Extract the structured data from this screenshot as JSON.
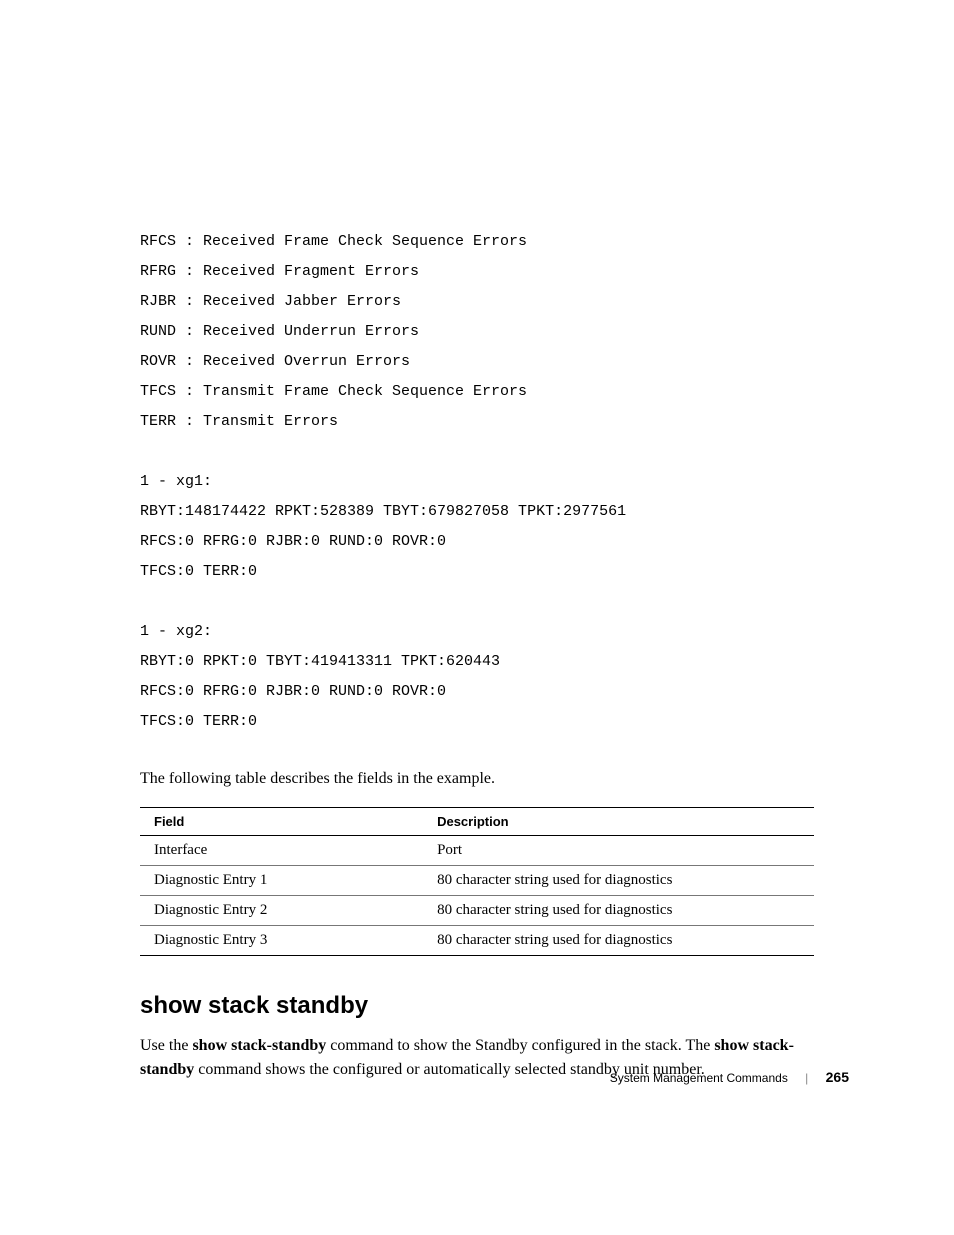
{
  "legend": {
    "lines": [
      "RFCS : Received Frame Check Sequence Errors",
      "RFRG : Received Fragment Errors",
      "RJBR : Received Jabber Errors",
      "RUND : Received Underrun Errors",
      "ROVR : Received Overrun Errors",
      "TFCS : Transmit Frame Check Sequence Errors",
      "TERR : Transmit Errors"
    ]
  },
  "port1": {
    "header": "1 - xg1:",
    "line1": "RBYT:148174422 RPKT:528389 TBYT:679827058 TPKT:2977561",
    "line2": "RFCS:0 RFRG:0 RJBR:0 RUND:0 ROVR:0",
    "line3": "TFCS:0 TERR:0"
  },
  "port2": {
    "header": "1 - xg2:",
    "line1": "RBYT:0 RPKT:0 TBYT:419413311 TPKT:620443",
    "line2": "RFCS:0 RFRG:0 RJBR:0 RUND:0 ROVR:0",
    "line3": "TFCS:0 TERR:0"
  },
  "table_intro": "The following table describes the fields in the example.",
  "table": {
    "header_field": "Field",
    "header_desc": "Description",
    "rows": [
      {
        "field": "Interface",
        "desc": "Port"
      },
      {
        "field": "Diagnostic Entry 1",
        "desc": "80 character string used for diagnostics"
      },
      {
        "field": "Diagnostic Entry 2",
        "desc": "80 character string used for diagnostics"
      },
      {
        "field": "Diagnostic Entry 3",
        "desc": "80 character string used for diagnostics"
      }
    ]
  },
  "section": {
    "heading": "show stack standby",
    "para_pre": "Use the ",
    "bold1": "show stack-standby",
    "para_mid": " command to show the Standby configured in the stack. The ",
    "bold2": "show stack-standby",
    "para_post": " command shows the configured or automatically selected standby unit number."
  },
  "footer": {
    "section": "System Management Commands",
    "page": "265"
  }
}
